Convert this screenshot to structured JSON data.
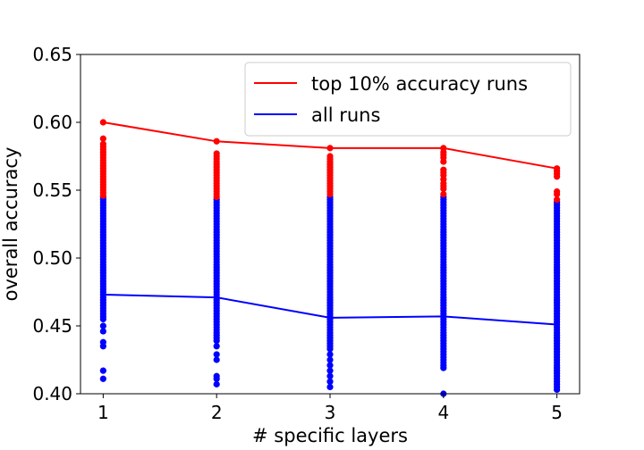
{
  "chart_data": {
    "type": "scatter",
    "title": "",
    "xlabel": "# specific layers",
    "ylabel": "overall accuracy",
    "xlim": [
      0.8,
      5.2
    ],
    "ylim": [
      0.4,
      0.65
    ],
    "x_ticks": [
      1,
      2,
      3,
      4,
      5
    ],
    "x_tick_labels": [
      "1",
      "2",
      "3",
      "4",
      "5"
    ],
    "y_ticks": [
      0.4,
      0.45,
      0.5,
      0.55,
      0.6,
      0.65
    ],
    "y_tick_labels": [
      "0.40",
      "0.45",
      "0.50",
      "0.55",
      "0.60",
      "0.65"
    ],
    "grid": false,
    "legend_position": "top-right",
    "series": [
      {
        "name": "top 10% accuracy runs",
        "kind": "line",
        "color": "#ff0000",
        "x": [
          1,
          2,
          3,
          4,
          5
        ],
        "y": [
          0.6,
          0.586,
          0.581,
          0.581,
          0.566
        ]
      },
      {
        "name": "all runs",
        "kind": "line",
        "color": "#0000ff",
        "x": [
          1,
          2,
          3,
          4,
          5
        ],
        "y": [
          0.473,
          0.471,
          0.456,
          0.457,
          0.451
        ]
      }
    ],
    "scatter_columns": [
      {
        "x": 1,
        "top_color": "#ff0000",
        "top_values": [
          0.6,
          0.588,
          0.584,
          0.582,
          0.58,
          0.578,
          0.576,
          0.574,
          0.572,
          0.57,
          0.568,
          0.566,
          0.564,
          0.562,
          0.56,
          0.558,
          0.556,
          0.554,
          0.552,
          0.55,
          0.548,
          0.546
        ],
        "all_color": "#0000ff",
        "all_values": [
          0.545,
          0.543,
          0.541,
          0.539,
          0.537,
          0.535,
          0.533,
          0.531,
          0.529,
          0.527,
          0.525,
          0.523,
          0.521,
          0.519,
          0.517,
          0.515,
          0.513,
          0.511,
          0.509,
          0.507,
          0.505,
          0.503,
          0.501,
          0.499,
          0.497,
          0.495,
          0.493,
          0.491,
          0.489,
          0.487,
          0.485,
          0.483,
          0.481,
          0.479,
          0.477,
          0.475,
          0.473,
          0.471,
          0.469,
          0.467,
          0.465,
          0.463,
          0.461,
          0.459,
          0.457,
          0.455,
          0.45,
          0.446,
          0.438,
          0.435,
          0.417,
          0.411
        ]
      },
      {
        "x": 2,
        "top_color": "#ff0000",
        "top_values": [
          0.586,
          0.577,
          0.575,
          0.573,
          0.571,
          0.569,
          0.567,
          0.565,
          0.563,
          0.561,
          0.559,
          0.557,
          0.555,
          0.553,
          0.551,
          0.549,
          0.547,
          0.545
        ],
        "all_color": "#0000ff",
        "all_values": [
          0.543,
          0.541,
          0.539,
          0.537,
          0.535,
          0.533,
          0.531,
          0.529,
          0.527,
          0.525,
          0.523,
          0.521,
          0.519,
          0.517,
          0.515,
          0.513,
          0.511,
          0.509,
          0.507,
          0.505,
          0.503,
          0.501,
          0.499,
          0.497,
          0.495,
          0.493,
          0.491,
          0.489,
          0.487,
          0.485,
          0.483,
          0.481,
          0.479,
          0.477,
          0.475,
          0.473,
          0.471,
          0.469,
          0.467,
          0.465,
          0.463,
          0.461,
          0.459,
          0.457,
          0.455,
          0.453,
          0.451,
          0.449,
          0.447,
          0.445,
          0.443,
          0.441,
          0.439,
          0.435,
          0.429,
          0.425,
          0.413,
          0.411,
          0.407
        ]
      },
      {
        "x": 3,
        "top_color": "#ff0000",
        "top_values": [
          0.581,
          0.575,
          0.573,
          0.571,
          0.569,
          0.567,
          0.565,
          0.563,
          0.561,
          0.559,
          0.557,
          0.555,
          0.553,
          0.551,
          0.549,
          0.547
        ],
        "all_color": "#0000ff",
        "all_values": [
          0.545,
          0.543,
          0.541,
          0.539,
          0.537,
          0.535,
          0.533,
          0.531,
          0.529,
          0.527,
          0.525,
          0.523,
          0.521,
          0.519,
          0.517,
          0.515,
          0.513,
          0.511,
          0.509,
          0.507,
          0.505,
          0.503,
          0.501,
          0.499,
          0.497,
          0.495,
          0.493,
          0.491,
          0.489,
          0.487,
          0.485,
          0.483,
          0.481,
          0.479,
          0.477,
          0.475,
          0.473,
          0.471,
          0.469,
          0.467,
          0.465,
          0.463,
          0.461,
          0.459,
          0.457,
          0.455,
          0.453,
          0.451,
          0.449,
          0.447,
          0.445,
          0.443,
          0.441,
          0.439,
          0.437,
          0.435,
          0.433,
          0.429,
          0.425,
          0.421,
          0.417,
          0.413,
          0.409,
          0.405
        ]
      },
      {
        "x": 4,
        "top_color": "#ff0000",
        "top_values": [
          0.581,
          0.578,
          0.576,
          0.574,
          0.571,
          0.565,
          0.563,
          0.561,
          0.558,
          0.555,
          0.553,
          0.551,
          0.547
        ],
        "all_color": "#0000ff",
        "all_values": [
          0.545,
          0.543,
          0.541,
          0.539,
          0.537,
          0.535,
          0.533,
          0.531,
          0.529,
          0.527,
          0.525,
          0.523,
          0.521,
          0.519,
          0.517,
          0.515,
          0.513,
          0.511,
          0.509,
          0.507,
          0.505,
          0.503,
          0.501,
          0.499,
          0.497,
          0.495,
          0.493,
          0.491,
          0.489,
          0.487,
          0.485,
          0.483,
          0.481,
          0.479,
          0.477,
          0.475,
          0.473,
          0.471,
          0.469,
          0.467,
          0.465,
          0.463,
          0.461,
          0.459,
          0.457,
          0.455,
          0.453,
          0.451,
          0.449,
          0.447,
          0.445,
          0.443,
          0.441,
          0.439,
          0.437,
          0.435,
          0.433,
          0.431,
          0.429,
          0.427,
          0.425,
          0.423,
          0.421,
          0.419,
          0.4
        ]
      },
      {
        "x": 5,
        "top_color": "#ff0000",
        "top_values": [
          0.566,
          0.564,
          0.562,
          0.56,
          0.549,
          0.547,
          0.543
        ],
        "all_color": "#0000ff",
        "all_values": [
          0.541,
          0.539,
          0.537,
          0.535,
          0.533,
          0.531,
          0.529,
          0.527,
          0.525,
          0.523,
          0.521,
          0.519,
          0.517,
          0.515,
          0.513,
          0.511,
          0.509,
          0.507,
          0.505,
          0.503,
          0.501,
          0.499,
          0.497,
          0.495,
          0.493,
          0.491,
          0.489,
          0.487,
          0.485,
          0.483,
          0.481,
          0.479,
          0.477,
          0.475,
          0.473,
          0.471,
          0.469,
          0.467,
          0.465,
          0.463,
          0.461,
          0.459,
          0.457,
          0.455,
          0.453,
          0.451,
          0.449,
          0.447,
          0.445,
          0.443,
          0.441,
          0.439,
          0.437,
          0.435,
          0.433,
          0.431,
          0.429,
          0.427,
          0.425,
          0.423,
          0.421,
          0.419,
          0.417,
          0.415,
          0.413,
          0.411,
          0.409,
          0.407,
          0.405,
          0.403
        ]
      }
    ]
  }
}
